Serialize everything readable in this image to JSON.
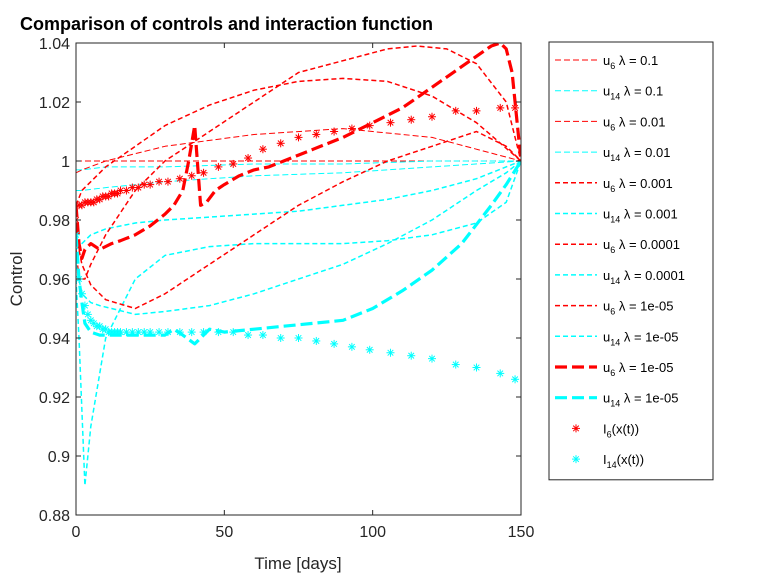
{
  "chart_data": {
    "type": "line",
    "title": "Comparison of controls and interaction function",
    "xlabel": "Time [days]",
    "ylabel": "Control",
    "xlim": [
      0,
      150
    ],
    "ylim": [
      0.88,
      1.04
    ],
    "xticks": [
      0,
      50,
      100,
      150
    ],
    "yticks": [
      0.88,
      0.9,
      0.92,
      0.94,
      0.96,
      0.98,
      1,
      1.02,
      1.04
    ],
    "ytick_labels": [
      "0.88",
      "0.9",
      "0.92",
      "0.94",
      "0.96",
      "0.98",
      "1",
      "1.02",
      "1.04"
    ],
    "legend_position": "outside-right",
    "colors": {
      "red": "#ff0000",
      "cyan": "#00ffff",
      "axis": "#262626"
    },
    "series": [
      {
        "name": "u6 λ = 0.1",
        "legend": {
          "base": "u",
          "sub": "6",
          "rest": " λ = 0.1"
        },
        "color": "#ff0000",
        "style": "dashed",
        "width": 1,
        "x": [
          0,
          2,
          10,
          30,
          60,
          90,
          120,
          150
        ],
        "y": [
          1.0,
          1.0,
          1.0,
          1.0,
          1.0,
          1.0,
          1.0,
          1.0
        ]
      },
      {
        "name": "u14 λ = 0.1",
        "legend": {
          "base": "u",
          "sub": "14",
          "rest": " λ = 0.1"
        },
        "color": "#00ffff",
        "style": "dashed",
        "width": 1,
        "x": [
          0,
          2,
          10,
          30,
          60,
          90,
          120,
          150
        ],
        "y": [
          0.997,
          0.997,
          0.998,
          0.998,
          0.999,
          0.999,
          1.0,
          1.0
        ]
      },
      {
        "name": "u6 λ = 0.01",
        "legend": {
          "base": "u",
          "sub": "6",
          "rest": " λ = 0.01"
        },
        "color": "#ff0000",
        "style": "dashed",
        "width": 1,
        "x": [
          0,
          2,
          10,
          30,
          60,
          90,
          120,
          150
        ],
        "y": [
          0.996,
          0.997,
          1.0,
          1.005,
          1.009,
          1.011,
          1.008,
          1.0
        ]
      },
      {
        "name": "u14 λ = 0.01",
        "legend": {
          "base": "u",
          "sub": "14",
          "rest": " λ = 0.01"
        },
        "color": "#00ffff",
        "style": "dashed",
        "width": 1,
        "x": [
          0,
          2,
          10,
          30,
          60,
          90,
          120,
          150
        ],
        "y": [
          0.99,
          0.99,
          0.991,
          0.993,
          0.995,
          0.996,
          0.998,
          1.0
        ]
      },
      {
        "name": "u6 λ = 0.001",
        "legend": {
          "base": "u",
          "sub": "6",
          "rest": " λ = 0.001"
        },
        "color": "#ff0000",
        "style": "dashed",
        "width": 1.5,
        "x": [
          0,
          2,
          5,
          10,
          20,
          30,
          45,
          60,
          75,
          90,
          105,
          120,
          135,
          150
        ],
        "y": [
          0.985,
          0.99,
          0.993,
          0.998,
          1.005,
          1.012,
          1.019,
          1.024,
          1.027,
          1.028,
          1.027,
          1.022,
          1.013,
          1.0
        ]
      },
      {
        "name": "u14 λ = 0.001",
        "legend": {
          "base": "u",
          "sub": "14",
          "rest": " λ = 0.001"
        },
        "color": "#00ffff",
        "style": "dashed",
        "width": 1.5,
        "x": [
          0,
          2,
          5,
          10,
          20,
          30,
          45,
          60,
          75,
          90,
          105,
          120,
          135,
          150
        ],
        "y": [
          0.97,
          0.972,
          0.975,
          0.977,
          0.979,
          0.98,
          0.981,
          0.982,
          0.983,
          0.985,
          0.987,
          0.99,
          0.994,
          1.0
        ]
      },
      {
        "name": "u6 λ = 0.0001",
        "legend": {
          "base": "u",
          "sub": "6",
          "rest": " λ = 0.0001"
        },
        "color": "#ff0000",
        "style": "dashed",
        "width": 1.5,
        "x": [
          0,
          1,
          3,
          5,
          10,
          20,
          30,
          45,
          60,
          75,
          90,
          105,
          115,
          125,
          135,
          145,
          150
        ],
        "y": [
          0.97,
          0.96,
          0.96,
          0.965,
          0.975,
          0.99,
          1.0,
          1.01,
          1.02,
          1.03,
          1.034,
          1.038,
          1.039,
          1.038,
          1.033,
          1.02,
          1.0
        ]
      },
      {
        "name": "u14 λ = 0.0001",
        "legend": {
          "base": "u",
          "sub": "14",
          "rest": " λ = 0.0001"
        },
        "color": "#00ffff",
        "style": "dashed",
        "width": 1.5,
        "x": [
          0,
          1,
          3,
          5,
          10,
          20,
          30,
          45,
          60,
          75,
          90,
          105,
          120,
          135,
          145,
          150
        ],
        "y": [
          0.96,
          0.94,
          0.89,
          0.91,
          0.94,
          0.96,
          0.968,
          0.971,
          0.972,
          0.972,
          0.972,
          0.973,
          0.975,
          0.979,
          0.986,
          1.0
        ]
      },
      {
        "name": "u6 λ = 1e-05",
        "legend": {
          "base": "u",
          "sub": "6",
          "rest": " λ = 1e-05"
        },
        "color": "#ff0000",
        "style": "dashed",
        "width": 1.5,
        "x": [
          0,
          2,
          5,
          10,
          20,
          30,
          45,
          60,
          75,
          90,
          105,
          120,
          135,
          145,
          150
        ],
        "y": [
          0.975,
          0.965,
          0.958,
          0.953,
          0.95,
          0.955,
          0.965,
          0.975,
          0.985,
          0.993,
          1.0,
          1.005,
          1.01,
          1.005,
          1.0
        ]
      },
      {
        "name": "u14 λ = 1e-05",
        "legend": {
          "base": "u",
          "sub": "14",
          "rest": " λ = 1e-05"
        },
        "color": "#00ffff",
        "style": "dashed",
        "width": 1.5,
        "x": [
          0,
          2,
          5,
          8,
          12,
          20,
          30,
          45,
          60,
          75,
          90,
          105,
          120,
          135,
          145,
          150
        ],
        "y": [
          0.965,
          0.955,
          0.952,
          0.951,
          0.95,
          0.948,
          0.949,
          0.951,
          0.955,
          0.96,
          0.965,
          0.972,
          0.98,
          0.99,
          0.996,
          1.0
        ]
      },
      {
        "name": "u6 λ = 1e-05",
        "legend": {
          "base": "u",
          "sub": "6",
          "rest": " λ = 1e-05"
        },
        "color": "#ff0000",
        "style": "dashdot-thick",
        "width": 3.2,
        "x": [
          0,
          1,
          2,
          3,
          5,
          8,
          12,
          15,
          20,
          25,
          30,
          33,
          36,
          38,
          40,
          42,
          44,
          47,
          50,
          55,
          60,
          65,
          70,
          75,
          80,
          90,
          100,
          110,
          120,
          130,
          140,
          143,
          145,
          147,
          150
        ],
        "y": [
          0.985,
          0.972,
          0.967,
          0.97,
          0.972,
          0.97,
          0.972,
          0.973,
          0.975,
          0.978,
          0.982,
          0.985,
          0.99,
          1.0,
          1.012,
          0.985,
          0.986,
          0.99,
          0.992,
          0.995,
          0.997,
          0.998,
          1.0,
          1.002,
          1.004,
          1.008,
          1.013,
          1.018,
          1.025,
          1.032,
          1.039,
          1.04,
          1.038,
          1.03,
          1.0
        ]
      },
      {
        "name": "u14 λ = 1e-05",
        "legend": {
          "base": "u",
          "sub": "14",
          "rest": " λ = 1e-05"
        },
        "color": "#00ffff",
        "style": "dashdot-thick",
        "width": 3.2,
        "x": [
          0,
          1,
          2,
          3,
          5,
          8,
          12,
          15,
          20,
          25,
          30,
          33,
          36,
          40,
          45,
          50,
          60,
          70,
          80,
          90,
          100,
          110,
          120,
          130,
          140,
          145,
          150
        ],
        "y": [
          0.975,
          0.96,
          0.952,
          0.945,
          0.942,
          0.941,
          0.941,
          0.941,
          0.941,
          0.941,
          0.941,
          0.943,
          0.941,
          0.938,
          0.943,
          0.942,
          0.943,
          0.944,
          0.945,
          0.946,
          0.95,
          0.956,
          0.963,
          0.972,
          0.985,
          0.992,
          1.0
        ]
      },
      {
        "name": "I6(x(t))",
        "legend": {
          "base": "I",
          "sub": "6",
          "rest": "(x(t))"
        },
        "color": "#ff0000",
        "style": "markers",
        "marker": "*",
        "x": [
          0,
          1,
          2,
          3,
          4,
          5,
          6,
          7,
          8,
          9,
          10,
          11,
          12,
          13,
          14,
          15,
          17,
          19,
          21,
          23,
          25,
          28,
          31,
          35,
          39,
          43,
          48,
          53,
          58,
          63,
          69,
          75,
          81,
          87,
          93,
          99,
          106,
          113,
          120,
          128,
          135,
          143,
          148
        ],
        "y": [
          0.98,
          0.985,
          0.985,
          0.986,
          0.986,
          0.986,
          0.986,
          0.987,
          0.987,
          0.988,
          0.988,
          0.988,
          0.989,
          0.989,
          0.989,
          0.99,
          0.99,
          0.991,
          0.991,
          0.992,
          0.992,
          0.993,
          0.993,
          0.994,
          0.995,
          0.996,
          0.998,
          0.999,
          1.001,
          1.004,
          1.006,
          1.008,
          1.009,
          1.01,
          1.011,
          1.012,
          1.013,
          1.014,
          1.015,
          1.017,
          1.017,
          1.018,
          1.018
        ]
      },
      {
        "name": "I14(x(t))",
        "legend": {
          "base": "I",
          "sub": "14",
          "rest": "(x(t))"
        },
        "color": "#00ffff",
        "style": "markers",
        "marker": "*",
        "x": [
          0,
          1,
          2,
          3,
          4,
          5,
          6,
          7,
          8,
          9,
          10,
          11,
          12,
          13,
          14,
          15,
          17,
          19,
          21,
          23,
          25,
          28,
          31,
          35,
          39,
          43,
          48,
          53,
          58,
          63,
          69,
          75,
          81,
          87,
          93,
          99,
          106,
          113,
          120,
          128,
          135,
          143,
          148
        ],
        "y": [
          0.975,
          0.96,
          0.955,
          0.951,
          0.948,
          0.946,
          0.945,
          0.944,
          0.944,
          0.943,
          0.943,
          0.942,
          0.942,
          0.942,
          0.942,
          0.942,
          0.942,
          0.942,
          0.942,
          0.942,
          0.942,
          0.942,
          0.942,
          0.942,
          0.942,
          0.942,
          0.942,
          0.942,
          0.941,
          0.941,
          0.94,
          0.94,
          0.939,
          0.938,
          0.937,
          0.936,
          0.935,
          0.934,
          0.933,
          0.931,
          0.93,
          0.928,
          0.926
        ]
      }
    ]
  }
}
